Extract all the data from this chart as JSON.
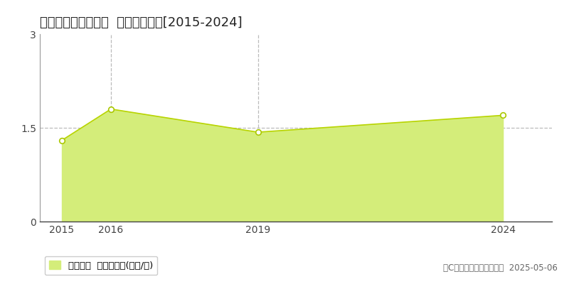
{
  "title": "邑楽郡大泉町上小泉  土地価格推移[2015-2024]",
  "years": [
    2015,
    2016,
    2019,
    2024
  ],
  "values": [
    1.3,
    1.8,
    1.43,
    1.7
  ],
  "fill_color": "#d4ed7a",
  "line_color": "#b8d400",
  "marker_color": "#ffffff",
  "marker_edge_color": "#aac800",
  "ylim": [
    0,
    3
  ],
  "yticks": [
    0,
    1.5,
    3
  ],
  "xlim_left": 2014.55,
  "xlim_right": 2025.0,
  "grid_color": "#bbbbbb",
  "bg_color": "#ffffff",
  "legend_label": "土地価格  平均坪単価(万円/坪)",
  "copyright_text": "（C）土地価格ドットコム  2025-05-06",
  "vgrid_years": [
    2016,
    2019
  ],
  "hgrid_values": [
    1.5
  ],
  "title_fontsize": 13,
  "tick_fontsize": 10,
  "legend_fontsize": 9.5,
  "copyright_fontsize": 8.5
}
